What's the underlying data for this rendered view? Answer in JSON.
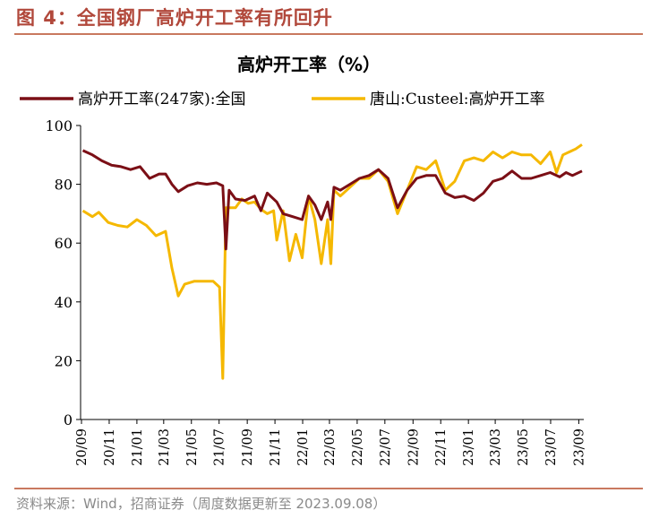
{
  "figure": {
    "title": "图 4：全国钢厂高炉开工率有所回升",
    "source": "资料来源：Wind，招商证券（周度数据更新至 2023.09.08）"
  },
  "colors": {
    "series_national": "#7b0f16",
    "series_tangshan": "#f5b800",
    "accent": "#b1483b"
  },
  "chart_data": {
    "type": "line",
    "title": "高炉开工率（%）",
    "xlabel": "",
    "ylabel": "",
    "ylim": [
      0,
      100
    ],
    "yticks": [
      0,
      20,
      40,
      60,
      80,
      100
    ],
    "xticks": [
      "20/09",
      "20/11",
      "21/01",
      "21/03",
      "21/05",
      "21/07",
      "21/09",
      "21/11",
      "22/01",
      "22/03",
      "22/05",
      "22/07",
      "22/09",
      "22/11",
      "23/01",
      "23/03",
      "23/05",
      "23/07",
      "23/09"
    ],
    "legend_position": "top",
    "series": [
      {
        "name": "高炉开工率(247家):全国",
        "points": [
          [
            "2020-09-04",
            91.5
          ],
          [
            "2020-09-25",
            90
          ],
          [
            "2020-10-16",
            88
          ],
          [
            "2020-11-06",
            86.5
          ],
          [
            "2020-11-27",
            86
          ],
          [
            "2020-12-18",
            85
          ],
          [
            "2021-01-08",
            86
          ],
          [
            "2021-01-29",
            82
          ],
          [
            "2021-02-19",
            83.5
          ],
          [
            "2021-03-05",
            83.5
          ],
          [
            "2021-03-19",
            80
          ],
          [
            "2021-04-02",
            77.5
          ],
          [
            "2021-04-23",
            79.5
          ],
          [
            "2021-05-14",
            80.5
          ],
          [
            "2021-06-04",
            80
          ],
          [
            "2021-06-25",
            80.5
          ],
          [
            "2021-07-09",
            79.5
          ],
          [
            "2021-07-16",
            58
          ],
          [
            "2021-07-23",
            78
          ],
          [
            "2021-08-06",
            75
          ],
          [
            "2021-08-27",
            74.5
          ],
          [
            "2021-09-17",
            76
          ],
          [
            "2021-10-01",
            71
          ],
          [
            "2021-10-15",
            77
          ],
          [
            "2021-11-05",
            74
          ],
          [
            "2021-11-19",
            70
          ],
          [
            "2021-12-10",
            69
          ],
          [
            "2021-12-31",
            68
          ],
          [
            "2022-01-14",
            76
          ],
          [
            "2022-01-28",
            73
          ],
          [
            "2022-02-11",
            68
          ],
          [
            "2022-02-25",
            74
          ],
          [
            "2022-03-04",
            68
          ],
          [
            "2022-03-11",
            79
          ],
          [
            "2022-03-25",
            78
          ],
          [
            "2022-04-15",
            80
          ],
          [
            "2022-05-06",
            82
          ],
          [
            "2022-05-27",
            83
          ],
          [
            "2022-06-17",
            85
          ],
          [
            "2022-07-08",
            82
          ],
          [
            "2022-07-29",
            72
          ],
          [
            "2022-08-19",
            78
          ],
          [
            "2022-09-09",
            82
          ],
          [
            "2022-09-30",
            83
          ],
          [
            "2022-10-21",
            83
          ],
          [
            "2022-11-11",
            77
          ],
          [
            "2022-12-02",
            75.5
          ],
          [
            "2022-12-23",
            76
          ],
          [
            "2023-01-13",
            74.5
          ],
          [
            "2023-02-03",
            77
          ],
          [
            "2023-02-24",
            81
          ],
          [
            "2023-03-17",
            82
          ],
          [
            "2023-04-07",
            84.5
          ],
          [
            "2023-04-28",
            82
          ],
          [
            "2023-05-19",
            82
          ],
          [
            "2023-06-09",
            83
          ],
          [
            "2023-06-30",
            84
          ],
          [
            "2023-07-21",
            82.5
          ],
          [
            "2023-08-04",
            84
          ],
          [
            "2023-08-18",
            83
          ],
          [
            "2023-09-08",
            84.5
          ]
        ]
      },
      {
        "name": "唐山:Custeel:高炉开工率",
        "points": [
          [
            "2020-09-04",
            71
          ],
          [
            "2020-09-25",
            69
          ],
          [
            "2020-10-09",
            70.5
          ],
          [
            "2020-10-30",
            67
          ],
          [
            "2020-11-20",
            66
          ],
          [
            "2020-12-11",
            65.5
          ],
          [
            "2021-01-01",
            68
          ],
          [
            "2021-01-22",
            66
          ],
          [
            "2021-02-12",
            62.5
          ],
          [
            "2021-03-05",
            64
          ],
          [
            "2021-03-19",
            51.5
          ],
          [
            "2021-04-02",
            42
          ],
          [
            "2021-04-16",
            46
          ],
          [
            "2021-05-07",
            47
          ],
          [
            "2021-05-28",
            47
          ],
          [
            "2021-06-18",
            47
          ],
          [
            "2021-07-02",
            45
          ],
          [
            "2021-07-09",
            14
          ],
          [
            "2021-07-16",
            72
          ],
          [
            "2021-08-06",
            72
          ],
          [
            "2021-08-20",
            75
          ],
          [
            "2021-09-03",
            73.5
          ],
          [
            "2021-09-17",
            74
          ],
          [
            "2021-10-01",
            71.5
          ],
          [
            "2021-10-15",
            70
          ],
          [
            "2021-10-29",
            71
          ],
          [
            "2021-11-05",
            61
          ],
          [
            "2021-11-19",
            71
          ],
          [
            "2021-12-03",
            54
          ],
          [
            "2021-12-17",
            63
          ],
          [
            "2021-12-31",
            55
          ],
          [
            "2022-01-14",
            76
          ],
          [
            "2022-01-28",
            68
          ],
          [
            "2022-02-11",
            53
          ],
          [
            "2022-02-25",
            68
          ],
          [
            "2022-03-04",
            53
          ],
          [
            "2022-03-11",
            78
          ],
          [
            "2022-03-25",
            76
          ],
          [
            "2022-04-15",
            79
          ],
          [
            "2022-05-06",
            82
          ],
          [
            "2022-05-27",
            82
          ],
          [
            "2022-06-17",
            85
          ],
          [
            "2022-07-08",
            81
          ],
          [
            "2022-07-29",
            70
          ],
          [
            "2022-08-19",
            78
          ],
          [
            "2022-09-09",
            86
          ],
          [
            "2022-09-30",
            85
          ],
          [
            "2022-10-21",
            88
          ],
          [
            "2022-11-11",
            78
          ],
          [
            "2022-12-02",
            81
          ],
          [
            "2022-12-23",
            88
          ],
          [
            "2023-01-13",
            89
          ],
          [
            "2023-02-03",
            88
          ],
          [
            "2023-02-24",
            91
          ],
          [
            "2023-03-17",
            89
          ],
          [
            "2023-04-07",
            91
          ],
          [
            "2023-04-28",
            90
          ],
          [
            "2023-05-19",
            90
          ],
          [
            "2023-06-09",
            87
          ],
          [
            "2023-06-30",
            91
          ],
          [
            "2023-07-14",
            84
          ],
          [
            "2023-07-28",
            90
          ],
          [
            "2023-08-11",
            91
          ],
          [
            "2023-08-25",
            92
          ],
          [
            "2023-09-08",
            93.5
          ]
        ]
      }
    ]
  }
}
